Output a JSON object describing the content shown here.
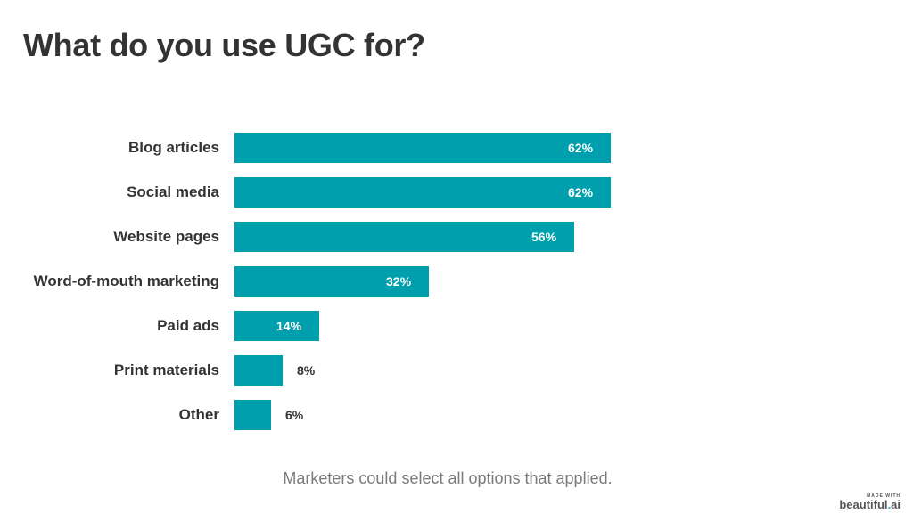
{
  "title": "What do you use UGC for?",
  "footnote": "Marketers could select all options that applied.",
  "branding": {
    "made_with": "MADE WITH",
    "name_main": "beautiful",
    "name_dot": ".",
    "name_tld": "ai"
  },
  "colors": {
    "bar": "#009fad",
    "title": "#333333",
    "footnote": "#7a7a7a"
  },
  "chart_data": {
    "type": "bar",
    "orientation": "horizontal",
    "title": "What do you use UGC for?",
    "categories": [
      "Blog articles",
      "Social media",
      "Website pages",
      "Word-of-mouth marketing",
      "Paid ads",
      "Print materials",
      "Other"
    ],
    "values": [
      62,
      62,
      56,
      32,
      14,
      8,
      6
    ],
    "value_labels": [
      "62%",
      "62%",
      "56%",
      "32%",
      "14%",
      "8%",
      "6%"
    ],
    "xlabel": "",
    "ylabel": "",
    "xlim": [
      0,
      100
    ],
    "grid": false,
    "legend": "none",
    "annotation": "Marketers could select all options that applied."
  }
}
